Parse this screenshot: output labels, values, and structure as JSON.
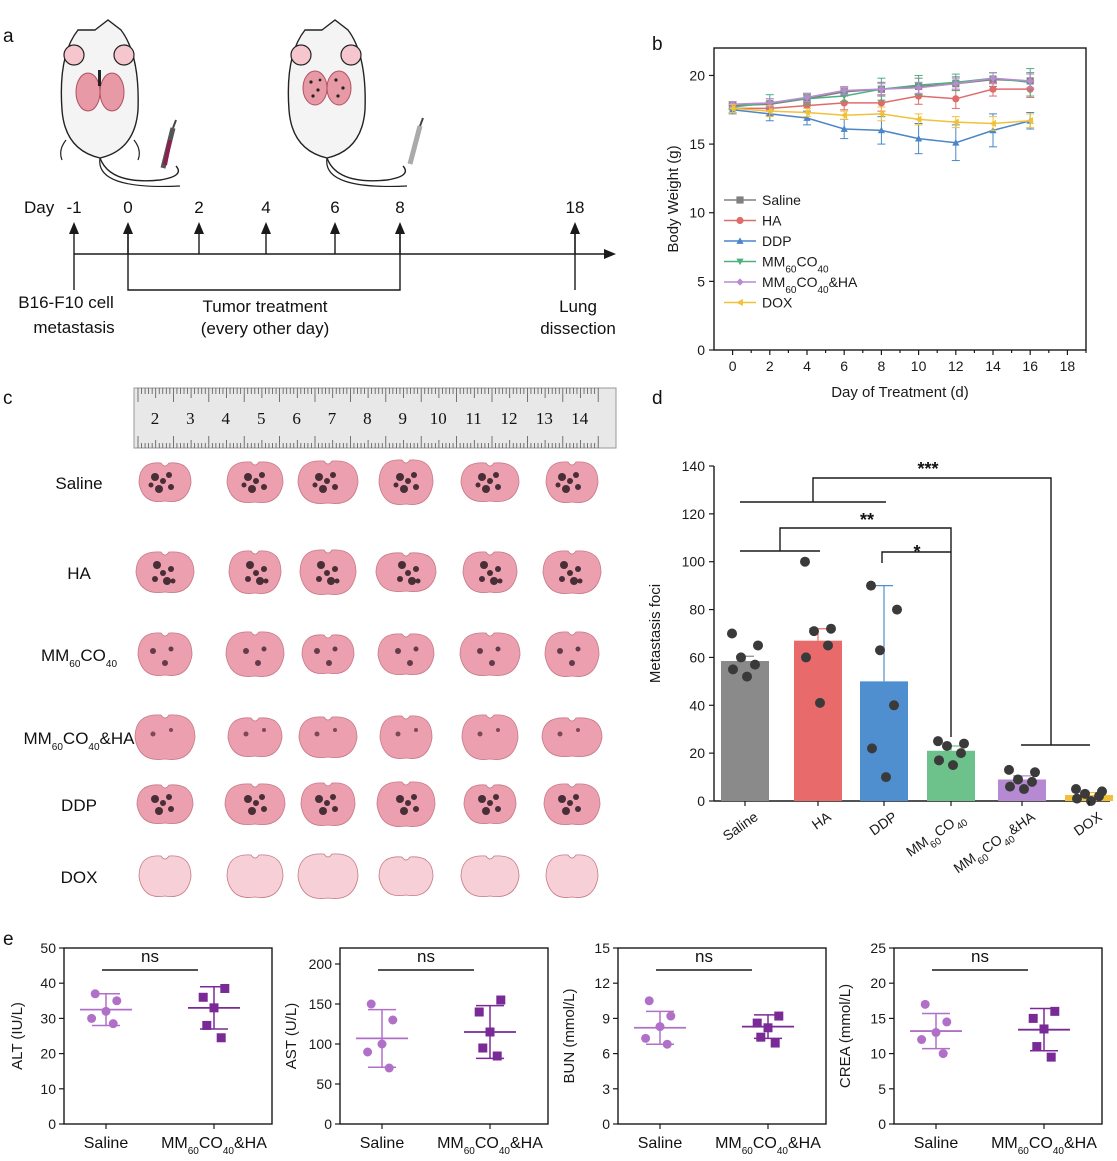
{
  "panel_labels": [
    "a",
    "b",
    "c",
    "d",
    "e"
  ],
  "timeline": {
    "day_prefix": "Day",
    "days": [
      "-1",
      "0",
      "2",
      "4",
      "6",
      "8",
      "18"
    ],
    "label_start_1": "B16-F10 cell",
    "label_start_2": "metastasis",
    "label_treat_1": "Tumor treatment",
    "label_treat_2": "(every other day)",
    "label_end_1": "Lung",
    "label_end_2": "dissection"
  },
  "lung_photo": {
    "ruler_numbers": [
      "2",
      "3",
      "4",
      "5",
      "6",
      "7",
      "8",
      "9",
      "10",
      "11",
      "12",
      "13",
      "14"
    ],
    "rows": [
      {
        "main": "Saline",
        "sub": "",
        "tail": "",
        "tint": "#2a1a22"
      },
      {
        "main": "HA",
        "sub": "",
        "tail": "",
        "tint": "#2a1a22"
      },
      {
        "main": "MM",
        "sub": "60",
        "tail": "CO",
        "sub2": "40",
        "tail2": "",
        "tint": "#4a2a38"
      },
      {
        "main": "MM",
        "sub": "60",
        "tail": "CO",
        "sub2": "40",
        "tail2": "&HA",
        "tint": "#6a3a48"
      },
      {
        "main": "DDP",
        "sub": "",
        "tail": "",
        "tint": "#2a1a22"
      },
      {
        "main": "DOX",
        "sub": "",
        "tail": "",
        "tint": "#f0c8cc"
      }
    ]
  },
  "chart_data": [
    {
      "type": "line",
      "panel": "b",
      "xlabel": "Day of Treatment (d)",
      "ylabel": "Body Weight (g)",
      "xlim": [
        -1,
        19
      ],
      "ylim": [
        0,
        22
      ],
      "xticks": [
        0,
        2,
        4,
        6,
        8,
        10,
        12,
        14,
        16,
        18
      ],
      "yticks": [
        0,
        5,
        10,
        15,
        20
      ],
      "x": [
        0,
        2,
        4,
        6,
        8,
        10,
        12,
        14,
        16
      ],
      "legend_position": "left",
      "series": [
        {
          "name": "Saline",
          "label_main": "Saline",
          "color": "#808080",
          "marker": "square",
          "values": [
            17.8,
            17.9,
            18.3,
            18.8,
            19.0,
            19.2,
            19.4,
            19.7,
            19.6
          ],
          "err": [
            0.2,
            0.4,
            0.3,
            0.3,
            0.5,
            0.6,
            0.5,
            0.5,
            0.6
          ]
        },
        {
          "name": "HA",
          "label_main": "HA",
          "color": "#e06b6b",
          "marker": "circle",
          "values": [
            17.6,
            17.6,
            17.8,
            18.0,
            18.0,
            18.5,
            18.3,
            19.0,
            19.0
          ],
          "err": [
            0.3,
            0.5,
            0.5,
            0.5,
            0.6,
            0.6,
            0.7,
            0.5,
            0.6
          ]
        },
        {
          "name": "DDP",
          "label_main": "DDP",
          "color": "#4a86c8",
          "marker": "triangle-up",
          "values": [
            17.5,
            17.2,
            16.9,
            16.1,
            16.0,
            15.4,
            15.1,
            16.0,
            16.7
          ],
          "err": [
            0.3,
            0.5,
            0.5,
            0.7,
            1.0,
            1.1,
            1.3,
            1.2,
            0.6
          ]
        },
        {
          "name": "MM60CO40",
          "label_main": "MM",
          "label_sub": "60",
          "label_tail": "CO",
          "label_sub2": "40",
          "label_tail2": "",
          "color": "#4caf7e",
          "marker": "triangle-down",
          "values": [
            17.7,
            18.0,
            18.3,
            18.5,
            19.0,
            19.3,
            19.5,
            19.8,
            19.5
          ],
          "err": [
            0.2,
            0.6,
            0.4,
            0.4,
            0.8,
            0.7,
            0.6,
            0.4,
            1.0
          ]
        },
        {
          "name": "MM60CO40&HA",
          "label_main": "MM",
          "label_sub": "60",
          "label_tail": "CO",
          "label_sub2": "40",
          "label_tail2": "&HA",
          "color": "#b98ad0",
          "marker": "diamond",
          "values": [
            17.9,
            18.0,
            18.4,
            18.9,
            19.0,
            19.1,
            19.4,
            19.8,
            19.6
          ],
          "err": [
            0.2,
            0.3,
            0.3,
            0.3,
            0.4,
            0.4,
            0.4,
            0.4,
            0.5
          ]
        },
        {
          "name": "DOX",
          "label_main": "DOX",
          "color": "#f0c23a",
          "marker": "triangle-left",
          "values": [
            17.6,
            17.4,
            17.3,
            17.1,
            17.2,
            16.8,
            16.6,
            16.5,
            16.7
          ],
          "err": [
            0.3,
            0.4,
            0.3,
            0.3,
            0.5,
            0.4,
            0.4,
            0.5,
            0.5
          ]
        }
      ]
    },
    {
      "type": "bar",
      "panel": "d",
      "ylabel": "Metastasis foci",
      "ylim": [
        0,
        140
      ],
      "yticks": [
        0,
        20,
        40,
        60,
        80,
        100,
        120,
        140
      ],
      "categories": [
        "Saline",
        "HA",
        "DDP",
        "MM60CO40",
        "MM60CO40&HA",
        "DOX"
      ],
      "category_labels": [
        {
          "main": "Saline"
        },
        {
          "main": "HA"
        },
        {
          "main": "DDP"
        },
        {
          "main": "MM",
          "sub": "60",
          "tail": "CO",
          "sub2": "40",
          "tail2": ""
        },
        {
          "main": "MM",
          "sub": "60",
          "tail": "CO",
          "sub2": "40",
          "tail2": "&HA"
        },
        {
          "main": "DOX"
        }
      ],
      "values": [
        58.5,
        67,
        50,
        21,
        9,
        2.5
      ],
      "err": [
        2,
        5,
        40,
        2,
        1.5,
        1
      ],
      "colors": [
        "#8a8a8a",
        "#e86a6a",
        "#4f8fd0",
        "#6cc28a",
        "#b58ad2",
        "#f2c037"
      ],
      "points": [
        [
          70,
          65,
          60,
          57,
          55,
          52
        ],
        [
          100,
          72,
          71,
          65,
          60,
          41
        ],
        [
          90,
          80,
          63,
          40,
          22,
          10
        ],
        [
          25,
          24,
          23,
          20,
          17,
          15
        ],
        [
          13,
          12,
          9,
          8,
          6,
          5
        ],
        [
          5,
          4,
          3,
          2,
          1,
          0
        ]
      ],
      "significance": [
        "***",
        "**",
        "*"
      ]
    },
    {
      "type": "scatter",
      "panel": "e1",
      "ylabel": "ALT (IU/L)",
      "ylim": [
        0,
        50
      ],
      "yticks": [
        0,
        10,
        20,
        30,
        40,
        50
      ],
      "categories": [
        "Saline",
        "MM60CO40&HA"
      ],
      "category_labels": [
        {
          "main": "Saline"
        },
        {
          "main": "MM",
          "sub": "60",
          "tail": "CO",
          "sub2": "40",
          "tail2": "&HA"
        }
      ],
      "mean": [
        32.5,
        33
      ],
      "sd": [
        4.5,
        6
      ],
      "points": [
        [
          37,
          35,
          32,
          30,
          28.5
        ],
        [
          38.5,
          36,
          33,
          28,
          24.5
        ]
      ],
      "colors": [
        "#b070c8",
        "#7a2a96"
      ],
      "markers": [
        "circle",
        "square"
      ],
      "annotation": "ns"
    },
    {
      "type": "scatter",
      "panel": "e2",
      "ylabel": "AST (U/L)",
      "ylim": [
        0,
        220
      ],
      "yticks": [
        0,
        50,
        100,
        150,
        200
      ],
      "categories": [
        "Saline",
        "MM60CO40&HA"
      ],
      "category_labels": [
        {
          "main": "Saline"
        },
        {
          "main": "MM",
          "sub": "60",
          "tail": "CO",
          "sub2": "40",
          "tail2": "&HA"
        }
      ],
      "mean": [
        107,
        115
      ],
      "sd": [
        36,
        33
      ],
      "points": [
        [
          150,
          130,
          100,
          90,
          70
        ],
        [
          155,
          140,
          115,
          95,
          85
        ]
      ],
      "colors": [
        "#b070c8",
        "#7a2a96"
      ],
      "markers": [
        "circle",
        "square"
      ],
      "annotation": "ns"
    },
    {
      "type": "scatter",
      "panel": "e3",
      "ylabel": "BUN (mmol/L)",
      "ylim": [
        0,
        15
      ],
      "yticks": [
        0,
        3,
        6,
        9,
        12,
        15
      ],
      "categories": [
        "Saline",
        "MM60CO40&HA"
      ],
      "category_labels": [
        {
          "main": "Saline"
        },
        {
          "main": "MM",
          "sub": "60",
          "tail": "CO",
          "sub2": "40",
          "tail2": "&HA"
        }
      ],
      "mean": [
        8.2,
        8.3
      ],
      "sd": [
        1.4,
        1.0
      ],
      "points": [
        [
          10.5,
          9.2,
          8.3,
          7.3,
          6.8
        ],
        [
          9.2,
          8.6,
          8.2,
          7.4,
          6.9
        ]
      ],
      "colors": [
        "#b070c8",
        "#7a2a96"
      ],
      "markers": [
        "circle",
        "square"
      ],
      "annotation": "ns"
    },
    {
      "type": "scatter",
      "panel": "e4",
      "ylabel": "CREA (mmol/L)",
      "ylim": [
        0,
        25
      ],
      "yticks": [
        0,
        5,
        10,
        15,
        20,
        25
      ],
      "categories": [
        "Saline",
        "MM60CO40&HA"
      ],
      "category_labels": [
        {
          "main": "Saline"
        },
        {
          "main": "MM",
          "sub": "60",
          "tail": "CO",
          "sub2": "40",
          "tail2": "&HA"
        }
      ],
      "mean": [
        13.2,
        13.4
      ],
      "sd": [
        2.5,
        3.0
      ],
      "points": [
        [
          17,
          14.5,
          13,
          12,
          10
        ],
        [
          16,
          15,
          13.5,
          11,
          9.5
        ]
      ],
      "colors": [
        "#b070c8",
        "#7a2a96"
      ],
      "markers": [
        "circle",
        "square"
      ],
      "annotation": "ns"
    }
  ]
}
